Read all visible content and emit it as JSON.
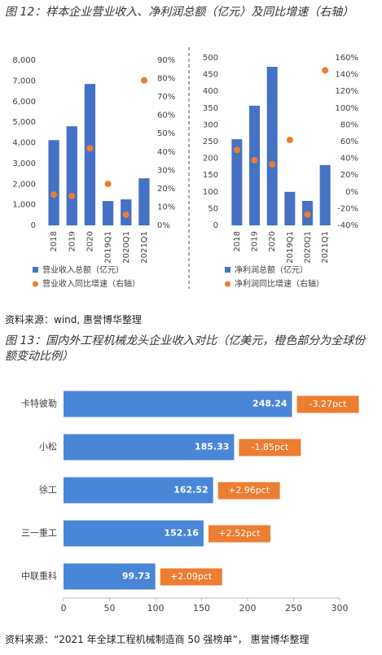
{
  "figure_12": {
    "title": "图 12：样本企业营业收入、净利润总额（亿元）及同比增速（右轴）",
    "source": "资料来源：wind, 惠誉博华整理"
  },
  "figure_13": {
    "title": "图 13：国内外工程机械龙头企业收入对比（亿美元，橙色部分为全球份额变动比例）",
    "source": "资料来源：“2021 年全球工程机械制造商 50 强榜单”， 惠誉博华整理"
  },
  "chart_data": [
    {
      "type": "combo",
      "categories": [
        "2018",
        "2019",
        "2020",
        "2019Q1",
        "2020Q1",
        "2021Q1"
      ],
      "series": [
        {
          "name": "营业收入总额（亿元）",
          "type": "bar",
          "color": "#4472c4",
          "values": [
            4130,
            4800,
            6850,
            1180,
            1260,
            2280
          ]
        },
        {
          "name": "营业收入同比增速（右轴）",
          "type": "scatter",
          "axis": "y2",
          "color": "#ed7d31",
          "values": [
            16.8,
            16,
            42,
            22.6,
            5.8,
            79
          ]
        }
      ],
      "ylim": [
        0,
        8000
      ],
      "yticks": [
        0,
        {
          "value": 1000,
          "label": "1,000"
        },
        {
          "value": 2000,
          "label": "2,000"
        },
        {
          "value": 3000,
          "label": "3,000"
        },
        {
          "value": 4000,
          "label": "4,000"
        },
        {
          "value": 5000,
          "label": "5,000"
        },
        {
          "value": 6000,
          "label": "6,000"
        },
        {
          "value": 7000,
          "label": "7,000"
        },
        {
          "value": 8000,
          "label": "8,000"
        }
      ],
      "y2lim": [
        0,
        90
      ],
      "y2ticks": [
        {
          "value": 0,
          "label": "0%"
        },
        {
          "value": 10,
          "label": "10%"
        },
        {
          "value": 20,
          "label": "20%"
        },
        {
          "value": 30,
          "label": "30%"
        },
        {
          "value": 40,
          "label": "40%"
        },
        {
          "value": 50,
          "label": "50%"
        },
        {
          "value": 60,
          "label": "60%"
        },
        {
          "value": 70,
          "label": "70%"
        },
        {
          "value": 80,
          "label": "80%"
        },
        {
          "value": 90,
          "label": "90%"
        }
      ]
    },
    {
      "type": "combo",
      "categories": [
        "2018",
        "2019",
        "2020",
        "2019Q1",
        "2020Q1",
        "2021Q1"
      ],
      "series": [
        {
          "name": "净利润总额（亿元）",
          "type": "bar",
          "color": "#4472c4",
          "values": [
            257,
            357,
            473,
            100,
            73,
            180
          ]
        },
        {
          "name": "净利润同比增速（右轴）",
          "type": "scatter",
          "axis": "y2",
          "color": "#ed7d31",
          "values": [
            50,
            37.7,
            32.8,
            62,
            -27,
            145
          ]
        }
      ],
      "ylim": [
        0,
        500
      ],
      "yticks": [
        0,
        50,
        100,
        150,
        200,
        250,
        300,
        350,
        400,
        450,
        500
      ],
      "y2lim": [
        -40,
        160
      ],
      "y2ticks": [
        {
          "value": -40,
          "label": "-40%"
        },
        {
          "value": -20,
          "label": "-20%"
        },
        {
          "value": 0,
          "label": "0%"
        },
        {
          "value": 20,
          "label": "20%"
        },
        {
          "value": 40,
          "label": "40%"
        },
        {
          "value": 60,
          "label": "60%"
        },
        {
          "value": 80,
          "label": "80%"
        },
        {
          "value": 100,
          "label": "100%"
        },
        {
          "value": 120,
          "label": "120%"
        },
        {
          "value": 140,
          "label": "140%"
        },
        {
          "value": 160,
          "label": "160%"
        }
      ]
    },
    {
      "type": "barh",
      "categories": [
        "卡特彼勒",
        "小松",
        "徐工",
        "三一重工",
        "中联重科"
      ],
      "values": [
        248.24,
        185.33,
        162.52,
        152.16,
        99.73
      ],
      "color": "#4a86d8",
      "annotations": [
        "-3.27pct",
        "-1.85pct",
        "+2.96pct",
        "+2.52pct",
        "+2.09pct"
      ],
      "annotation_color": "#ed7d31",
      "xlim": [
        0,
        300
      ],
      "xticks": [
        0,
        50,
        100,
        150,
        200,
        250,
        300
      ]
    }
  ]
}
